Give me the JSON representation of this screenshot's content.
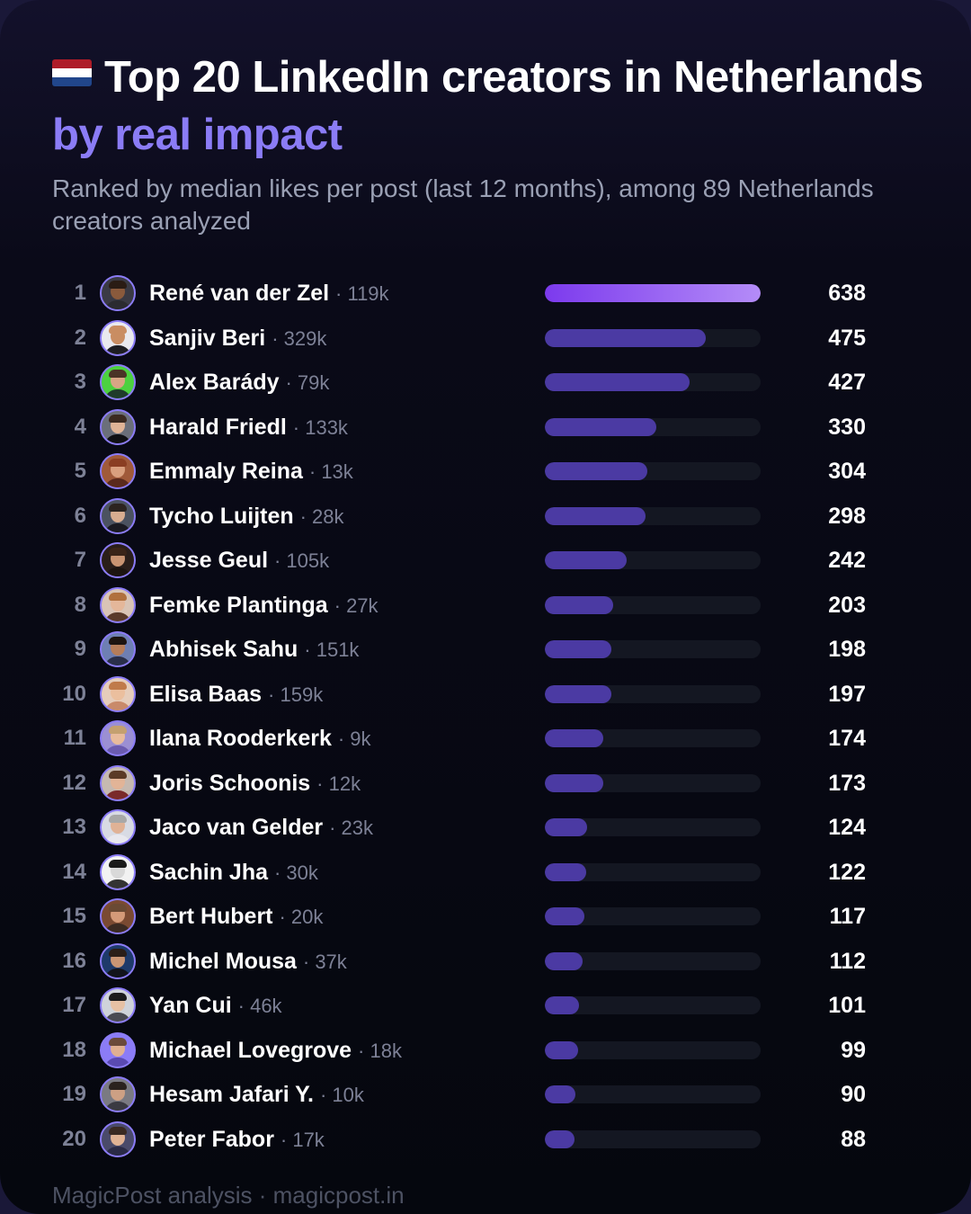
{
  "header": {
    "title": "Top 20 LinkedIn creators in Netherlands",
    "title_highlight": "by real impact",
    "subtitle": "Ranked by median likes per post (last 12 months), among 89 Netherlands creators analyzed",
    "flag_icon": "netherlands-flag-icon"
  },
  "footer": {
    "text": "MagicPost analysis · magicpost.in"
  },
  "colors": {
    "background": "#05070e",
    "accent": "#8b7cf6",
    "bar": "#4b3aa3",
    "bar_top_start": "#7c3aed",
    "bar_top_end": "#b48cf8",
    "track": "#141722"
  },
  "chart_data": {
    "type": "bar",
    "orientation": "horizontal",
    "title": "Top 20 LinkedIn creators in Netherlands by real impact",
    "subtitle": "Ranked by median likes per post (last 12 months), among 89 Netherlands creators analyzed",
    "xlim": [
      0,
      638
    ],
    "grid": false,
    "rows": [
      {
        "rank": "1",
        "name": "René van der Zel",
        "followers": "· 119k",
        "value": 638,
        "avatar": {
          "skin": "#8a5a3c",
          "hair": "#2a1c14",
          "shirt": "#2b2b30",
          "bg": "#3a3a44"
        }
      },
      {
        "rank": "2",
        "name": "Sanjiv Beri",
        "followers": "· 329k",
        "value": 475,
        "avatar": {
          "skin": "#c98d62",
          "hair": "#c98d62",
          "shirt": "#1d1d22",
          "bg": "#e9e9ee"
        }
      },
      {
        "rank": "3",
        "name": "Alex Barády",
        "followers": "· 79k",
        "value": 427,
        "avatar": {
          "skin": "#d8a585",
          "hair": "#4a3326",
          "shirt": "#1f3b2a",
          "bg": "#4cd13f"
        }
      },
      {
        "rank": "4",
        "name": "Harald Friedl",
        "followers": "· 133k",
        "value": 330,
        "avatar": {
          "skin": "#e0b496",
          "hair": "#3b2a20",
          "shirt": "#101014",
          "bg": "#6b6f7a"
        }
      },
      {
        "rank": "5",
        "name": "Emmaly Reina",
        "followers": "· 13k",
        "value": 304,
        "avatar": {
          "skin": "#d9a07e",
          "hair": "#8a3e22",
          "shirt": "#5a2a1c",
          "bg": "#a05a3a"
        }
      },
      {
        "rank": "6",
        "name": "Tycho Luijten",
        "followers": "· 28k",
        "value": 298,
        "avatar": {
          "skin": "#d8ad90",
          "hair": "#2c2420",
          "shirt": "#1a1a22",
          "bg": "#4b5260"
        }
      },
      {
        "rank": "7",
        "name": "Jesse Geul",
        "followers": "· 105k",
        "value": 242,
        "avatar": {
          "skin": "#c99472",
          "hair": "#3a2418",
          "shirt": "#1c1410",
          "bg": "#2a1e1a"
        }
      },
      {
        "rank": "8",
        "name": "Femke Plantinga",
        "followers": "· 27k",
        "value": 203,
        "avatar": {
          "skin": "#e4b79a",
          "hair": "#b0703e",
          "shirt": "#5a3a2a",
          "bg": "#d9c4b6"
        }
      },
      {
        "rank": "9",
        "name": "Abhisek Sahu",
        "followers": "· 151k",
        "value": 198,
        "avatar": {
          "skin": "#b57d5a",
          "hair": "#1c1410",
          "shirt": "#2a2f4a",
          "bg": "#6e7fb3"
        }
      },
      {
        "rank": "10",
        "name": "Elisa Baas",
        "followers": "· 159k",
        "value": 197,
        "avatar": {
          "skin": "#ebbf9e",
          "hair": "#c07a4a",
          "shirt": "#c98a6a",
          "bg": "#e6cdbb"
        }
      },
      {
        "rank": "11",
        "name": "Ilana Rooderkerk",
        "followers": "· 9k",
        "value": 174,
        "avatar": {
          "skin": "#e8bb9c",
          "hair": "#c4a070",
          "shirt": "#6b5bb0",
          "bg": "#9b8fd3"
        }
      },
      {
        "rank": "12",
        "name": "Joris Schoonis",
        "followers": "· 12k",
        "value": 173,
        "avatar": {
          "skin": "#e2b497",
          "hair": "#5a3a26",
          "shirt": "#7a2a2a",
          "bg": "#c6b9b0"
        }
      },
      {
        "rank": "13",
        "name": "Jaco van Gelder",
        "followers": "· 23k",
        "value": 124,
        "avatar": {
          "skin": "#e0b296",
          "hair": "#a8a8a8",
          "shirt": "#e8e8ee",
          "bg": "#d8dbe4"
        }
      },
      {
        "rank": "14",
        "name": "Sachin Jha",
        "followers": "· 30k",
        "value": 122,
        "avatar": {
          "skin": "#d9d9d9",
          "hair": "#1a1a1a",
          "shirt": "#333333",
          "bg": "#f2f2f2"
        }
      },
      {
        "rank": "15",
        "name": "Bert Hubert",
        "followers": "· 20k",
        "value": 117,
        "avatar": {
          "skin": "#d49a78",
          "hair": "#6a4a34",
          "shirt": "#3a2a22",
          "bg": "#7a4a32"
        }
      },
      {
        "rank": "16",
        "name": "Michel Mousa",
        "followers": "· 37k",
        "value": 112,
        "avatar": {
          "skin": "#c99574",
          "hair": "#2a1e18",
          "shirt": "#12141c",
          "bg": "#1e3a6a"
        }
      },
      {
        "rank": "17",
        "name": "Yan Cui",
        "followers": "· 46k",
        "value": 101,
        "avatar": {
          "skin": "#e6c1a4",
          "hair": "#1c1c1c",
          "shirt": "#4a4a52",
          "bg": "#cfd3da"
        }
      },
      {
        "rank": "18",
        "name": "Michael Lovegrove",
        "followers": "· 18k",
        "value": 99,
        "avatar": {
          "skin": "#e0b092",
          "hair": "#6a4a3a",
          "shirt": "#5a4ab0",
          "bg": "#8b7cf6"
        }
      },
      {
        "rank": "19",
        "name": "Hesam Jafari Y.",
        "followers": "· 10k",
        "value": 90,
        "avatar": {
          "skin": "#cda084",
          "hair": "#2a221e",
          "shirt": "#3a3a42",
          "bg": "#7a7a82"
        }
      },
      {
        "rank": "20",
        "name": "Peter Fabor",
        "followers": "· 17k",
        "value": 88,
        "avatar": {
          "skin": "#e0b294",
          "hair": "#3a2a22",
          "shirt": "#2a2a46",
          "bg": "#4a4a6a"
        }
      }
    ]
  }
}
